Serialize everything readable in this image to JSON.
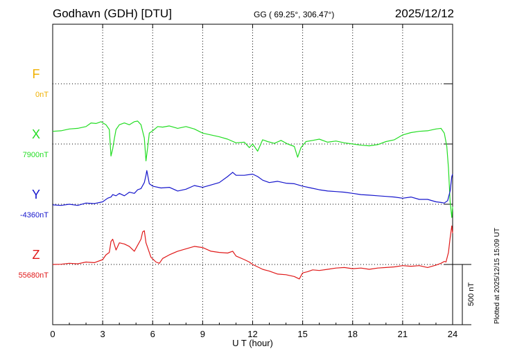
{
  "header": {
    "station": "Godhavn (GDH)  [DTU]",
    "coords": "GG ( 69.25°, 306.47°)",
    "date": "2025/12/12"
  },
  "plotted_note": "Plotted at 2025/12/15 15:09 UT",
  "colors": {
    "F": "#f0b000",
    "X": "#22dd22",
    "Y": "#1414cc",
    "Z": "#e01818"
  },
  "chart_data": {
    "type": "line",
    "xlabel": "U T (hour)",
    "xlim": [
      0,
      24
    ],
    "x_ticks": [
      0,
      3,
      6,
      9,
      12,
      15,
      18,
      21,
      24
    ],
    "scale_bar": "500 nT",
    "grid": true,
    "series": [
      {
        "name": "F",
        "baseline_label": "0nT",
        "baseline": 0,
        "x": [],
        "y": []
      },
      {
        "name": "X",
        "baseline_label": "7900nT",
        "baseline": 7900,
        "x": [
          0,
          0.5,
          1,
          1.5,
          2,
          2.3,
          2.6,
          2.9,
          3.2,
          3.4,
          3.5,
          3.6,
          3.7,
          3.8,
          4.0,
          4.3,
          4.6,
          4.9,
          5.1,
          5.3,
          5.5,
          5.6,
          5.7,
          5.8,
          6.0,
          6.3,
          6.6,
          7.0,
          7.5,
          8.0,
          8.5,
          9.0,
          9.5,
          10.0,
          10.5,
          11.0,
          11.5,
          11.8,
          12.0,
          12.3,
          12.6,
          12.9,
          13.3,
          13.7,
          14.1,
          14.5,
          14.7,
          14.9,
          15.2,
          15.6,
          16.0,
          16.5,
          17.0,
          17.5,
          18.0,
          18.5,
          19.0,
          19.5,
          20.0,
          20.5,
          21.0,
          21.5,
          22.0,
          22.5,
          23.0,
          23.3,
          23.5,
          23.65,
          23.75,
          23.85,
          23.95,
          24.0
        ],
        "y": [
          8005,
          8010,
          8025,
          8030,
          8045,
          8075,
          8070,
          8085,
          8060,
          8020,
          7800,
          7860,
          7945,
          8020,
          8060,
          8075,
          8060,
          8085,
          8090,
          8060,
          7950,
          7760,
          7870,
          7990,
          8010,
          8045,
          8040,
          8050,
          8030,
          8045,
          8025,
          7990,
          7975,
          7960,
          7940,
          7910,
          7915,
          7870,
          7900,
          7840,
          7935,
          7920,
          7905,
          7930,
          7900,
          7880,
          7790,
          7870,
          7920,
          7930,
          7940,
          7915,
          7925,
          7910,
          7900,
          7890,
          7885,
          7895,
          7920,
          7935,
          7975,
          7995,
          8005,
          8010,
          8025,
          8030,
          7990,
          7880,
          7700,
          7420,
          7290,
          7380
        ]
      },
      {
        "name": "Y",
        "baseline_label": "-4360nT",
        "baseline": -4360,
        "x": [
          0,
          0.5,
          1,
          1.5,
          2,
          2.5,
          3,
          3.3,
          3.5,
          3.6,
          3.8,
          4.0,
          4.3,
          4.6,
          4.9,
          5.1,
          5.3,
          5.5,
          5.6,
          5.65,
          5.8,
          6.0,
          6.5,
          7.0,
          7.5,
          8.0,
          8.5,
          9.0,
          9.5,
          10.0,
          10.5,
          10.8,
          11.0,
          11.5,
          12.0,
          12.3,
          12.6,
          13.0,
          13.5,
          14.0,
          14.5,
          15.0,
          15.5,
          16.0,
          16.5,
          17.0,
          17.5,
          18.0,
          18.5,
          19.0,
          19.5,
          20.0,
          20.5,
          21.0,
          21.5,
          22.0,
          22.5,
          23.0,
          23.3,
          23.5,
          23.7,
          23.85,
          23.95,
          24.0
        ],
        "y": [
          -4365,
          -4370,
          -4360,
          -4370,
          -4350,
          -4355,
          -4340,
          -4310,
          -4300,
          -4280,
          -4290,
          -4270,
          -4290,
          -4260,
          -4270,
          -4240,
          -4230,
          -4180,
          -4120,
          -4080,
          -4190,
          -4210,
          -4225,
          -4220,
          -4250,
          -4235,
          -4205,
          -4220,
          -4200,
          -4180,
          -4130,
          -4095,
          -4120,
          -4120,
          -4110,
          -4130,
          -4160,
          -4180,
          -4170,
          -4185,
          -4190,
          -4210,
          -4225,
          -4240,
          -4250,
          -4255,
          -4260,
          -4270,
          -4280,
          -4285,
          -4290,
          -4295,
          -4300,
          -4310,
          -4300,
          -4320,
          -4320,
          -4340,
          -4345,
          -4350,
          -4330,
          -4250,
          -4130,
          -4110
        ]
      },
      {
        "name": "Z",
        "baseline_label": "55680nT",
        "baseline": 55680,
        "x": [
          0,
          0.5,
          1,
          1.5,
          2,
          2.5,
          3,
          3.2,
          3.4,
          3.5,
          3.6,
          3.8,
          4.0,
          4.3,
          4.6,
          4.9,
          5.1,
          5.3,
          5.4,
          5.5,
          5.6,
          5.7,
          5.9,
          6.2,
          6.4,
          6.6,
          7.0,
          7.5,
          8.0,
          8.5,
          9.0,
          9.5,
          10.0,
          10.5,
          10.8,
          11.0,
          11.5,
          11.8,
          12.0,
          12.3,
          12.6,
          13.0,
          13.5,
          14.0,
          14.5,
          14.8,
          15.0,
          15.3,
          15.6,
          16.0,
          16.5,
          17.0,
          17.5,
          18.0,
          18.5,
          19.0,
          19.5,
          20.0,
          20.5,
          21.0,
          21.5,
          22.0,
          22.5,
          23.0,
          23.3,
          23.5,
          23.6,
          23.75,
          23.85,
          23.95,
          24.0
        ],
        "y": [
          55680,
          55682,
          55690,
          55685,
          55700,
          55695,
          55720,
          55760,
          55780,
          55870,
          55890,
          55800,
          55860,
          55850,
          55830,
          55790,
          55840,
          55890,
          55950,
          55960,
          55860,
          55820,
          55740,
          55700,
          55690,
          55730,
          55760,
          55790,
          55810,
          55830,
          55820,
          55790,
          55780,
          55775,
          55790,
          55750,
          55720,
          55700,
          55680,
          55660,
          55640,
          55625,
          55600,
          55595,
          55580,
          55560,
          55610,
          55620,
          55635,
          55630,
          55640,
          55650,
          55655,
          55645,
          55650,
          55640,
          55650,
          55655,
          55660,
          55670,
          55665,
          55670,
          55655,
          55675,
          55690,
          55705,
          55700,
          55780,
          55900,
          56000,
          55940
        ]
      }
    ]
  }
}
